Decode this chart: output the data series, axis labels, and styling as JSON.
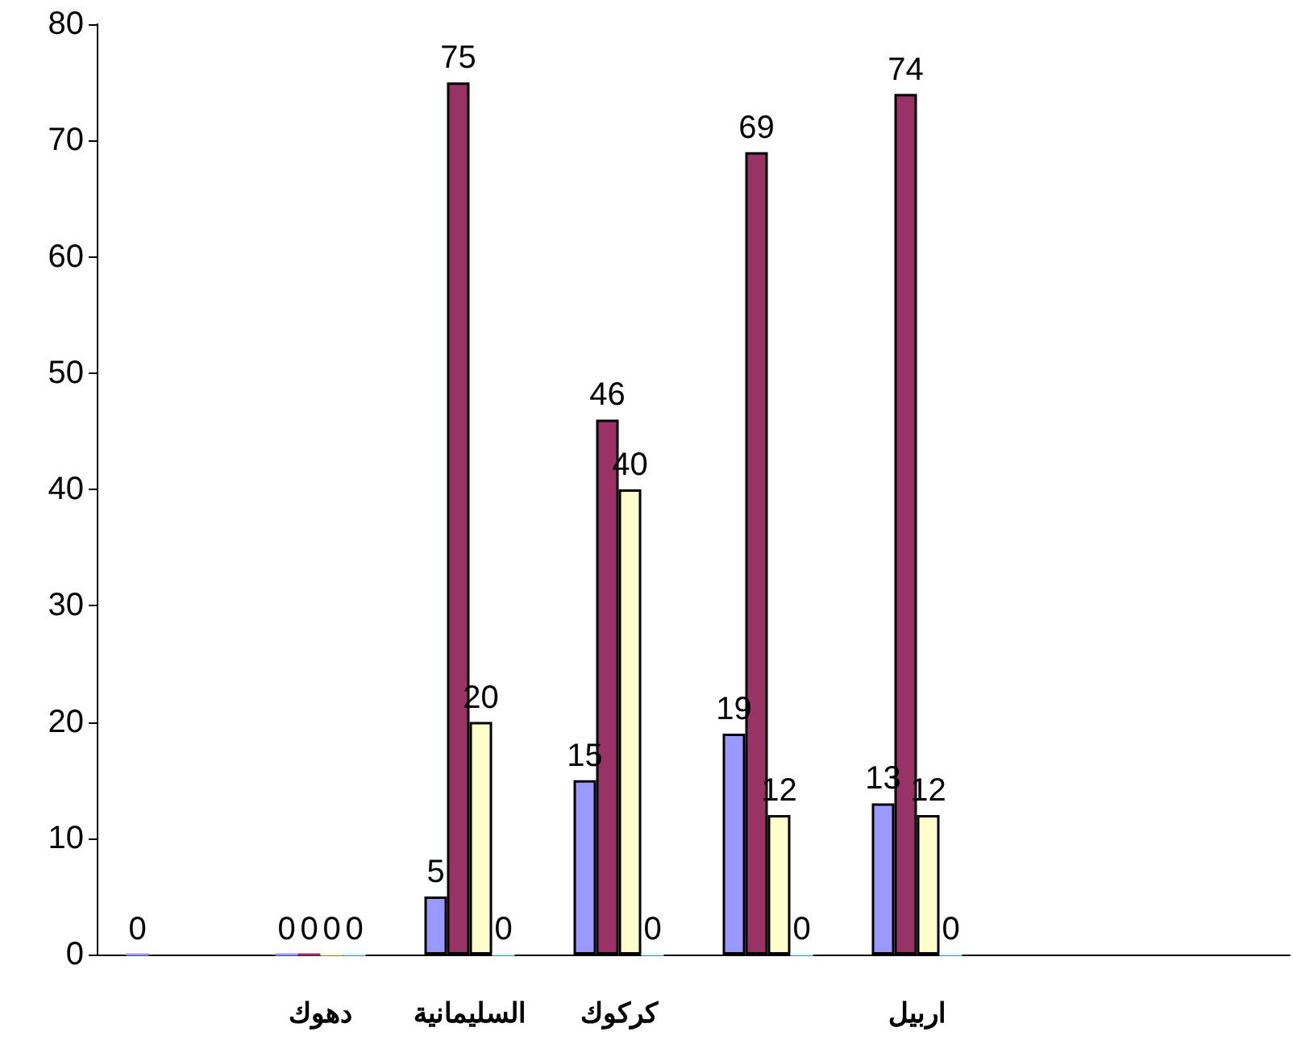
{
  "chart_data": {
    "type": "bar",
    "categories": [
      null,
      "دهوك",
      "السليمانية",
      "كركوك",
      null,
      "اربيل",
      null,
      null
    ],
    "series": [
      {
        "color": "#9999ff",
        "values": [
          0,
          0,
          5,
          15,
          19,
          13,
          null,
          null
        ]
      },
      {
        "color": "#993366",
        "values": [
          null,
          0,
          75,
          46,
          69,
          74,
          null,
          null
        ]
      },
      {
        "color": "#ffffcc",
        "values": [
          null,
          0,
          20,
          40,
          12,
          12,
          null,
          null
        ]
      },
      {
        "color": "#ccffff",
        "values": [
          null,
          0,
          0,
          0,
          0,
          0,
          null,
          null
        ]
      }
    ],
    "ylim": [
      0,
      80
    ],
    "yticks": [
      0,
      10,
      20,
      30,
      40,
      50,
      60,
      70,
      80
    ],
    "grid": false,
    "data_labels": true
  }
}
